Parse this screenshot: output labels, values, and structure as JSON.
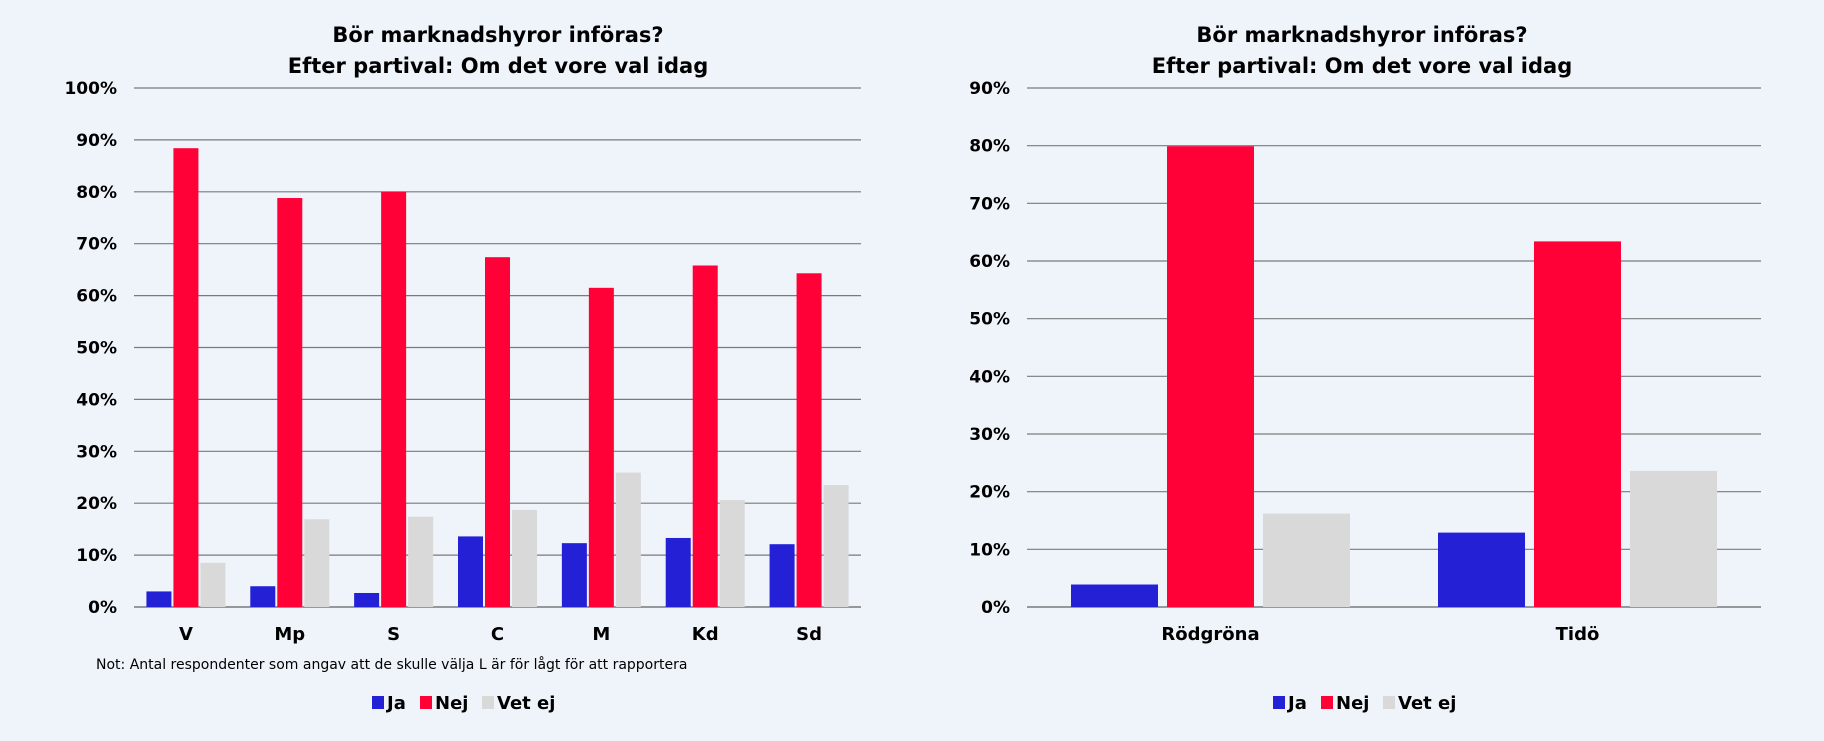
{
  "colors": {
    "background": "#eff4fa",
    "Ja": "#2320d6",
    "Nej": "#ff0037",
    "Vet ej": "#d9d9d9",
    "grid": "#7a7a7a"
  },
  "chart_data": [
    {
      "type": "bar",
      "title": [
        "Bör marknadshyror införas?",
        "Efter partival: Om det vore val idag"
      ],
      "categories": [
        "V",
        "Mp",
        "S",
        "C",
        "M",
        "Kd",
        "Sd"
      ],
      "series": [
        {
          "name": "Ja",
          "values": [
            3.0,
            4.0,
            2.7,
            13.6,
            12.3,
            13.3,
            12.1
          ]
        },
        {
          "name": "Nej",
          "values": [
            88.4,
            78.8,
            80.0,
            67.4,
            61.5,
            65.8,
            64.3
          ]
        },
        {
          "name": "Vet ej",
          "values": [
            8.5,
            16.9,
            17.4,
            18.7,
            25.9,
            20.6,
            23.5
          ]
        }
      ],
      "ylim": [
        0,
        100
      ],
      "yticks": [
        "0%",
        "10%",
        "20%",
        "30%",
        "40%",
        "50%",
        "60%",
        "70%",
        "80%",
        "90%",
        "100%"
      ],
      "grid": true,
      "legend": "bottom",
      "note": "Not: Antal respondenter som angav att de skulle välja  L är för lågt för att rapportera"
    },
    {
      "type": "bar",
      "title": [
        "Bör marknadshyror införas?",
        "Efter partival: Om det vore val idag"
      ],
      "categories": [
        "Rödgröna",
        "Tidö"
      ],
      "series": [
        {
          "name": "Ja",
          "values": [
            3.9,
            12.9
          ]
        },
        {
          "name": "Nej",
          "values": [
            79.9,
            63.4
          ]
        },
        {
          "name": "Vet ej",
          "values": [
            16.2,
            23.6
          ]
        }
      ],
      "ylim": [
        0,
        90
      ],
      "yticks": [
        "0%",
        "10%",
        "20%",
        "30%",
        "40%",
        "50%",
        "60%",
        "70%",
        "80%",
        "90%"
      ],
      "grid": true,
      "legend": "bottom"
    }
  ]
}
